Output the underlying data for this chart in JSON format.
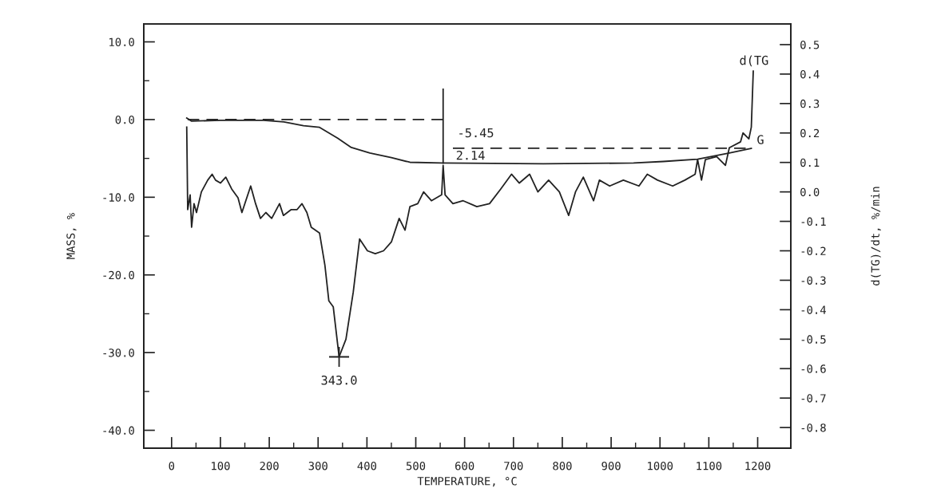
{
  "chart_data": {
    "type": "line",
    "xlabel": "TEMPERATURE, °C",
    "ylabel": "MASS, %",
    "y2label": "d(TG)/dt, %/min",
    "xlim": [
      -57,
      1268
    ],
    "ylim": [
      -42.3,
      12.3
    ],
    "y2lim": [
      -0.87,
      0.57
    ],
    "xticks": [
      0,
      {
        "value": 50,
        "label": null
      },
      100,
      {
        "value": 150,
        "label": null
      },
      200,
      {
        "value": 250,
        "label": null
      },
      300,
      {
        "value": 350,
        "label": null
      },
      400,
      {
        "value": 450,
        "label": null
      },
      500,
      {
        "value": 550,
        "label": null
      },
      600,
      {
        "value": 650,
        "label": null
      },
      700,
      {
        "value": 750,
        "label": null
      },
      800,
      {
        "value": 850,
        "label": null
      },
      900,
      {
        "value": 950,
        "label": null
      },
      1000,
      {
        "value": 1050,
        "label": null
      },
      1100,
      {
        "value": 1150,
        "label": null
      },
      1200
    ],
    "yticks": [
      {
        "value": 10,
        "label": "10.0"
      },
      {
        "value": 5,
        "label": null
      },
      {
        "value": 0,
        "label": "0.0"
      },
      {
        "value": -5,
        "label": null
      },
      {
        "value": -10,
        "label": "-10.0"
      },
      {
        "value": -15,
        "label": null
      },
      {
        "value": -20,
        "label": "-20.0"
      },
      {
        "value": -25,
        "label": null
      },
      {
        "value": -30,
        "label": "-30.0"
      },
      {
        "value": -35,
        "label": null
      },
      {
        "value": -40,
        "label": "-40.0"
      }
    ],
    "y2ticks": [
      {
        "value": 0.5,
        "label": "0.5"
      },
      {
        "value": 0.4,
        "label": "0.4"
      },
      {
        "value": 0.3,
        "label": "0.3"
      },
      {
        "value": 0.2,
        "label": "0.2"
      },
      {
        "value": 0.1,
        "label": "0.1"
      },
      {
        "value": 0,
        "label": "0.0"
      },
      {
        "value": -0.1,
        "label": "-0.1"
      },
      {
        "value": -0.2,
        "label": "-0.2"
      },
      {
        "value": -0.3,
        "label": "-0.3"
      },
      {
        "value": -0.4,
        "label": "-0.4"
      },
      {
        "value": -0.5,
        "label": "-0.5"
      },
      {
        "value": -0.6,
        "label": "-0.6"
      },
      {
        "value": -0.7,
        "label": "-0.7"
      },
      {
        "value": -0.8,
        "label": "-0.8"
      }
    ],
    "series": [
      {
        "axis": "y",
        "color": "#222222",
        "line_style": "solid",
        "x": [
          31,
          41,
          100,
          139,
          188,
          230,
          270,
          303,
          340,
          368,
          406,
          450,
          488,
          553,
          761,
          946,
          1007,
          1077,
          1142,
          1187
        ],
        "values": [
          0.2,
          -0.2,
          -0.1,
          -0.1,
          -0.1,
          -0.3,
          -0.8,
          -1.0,
          -2.4,
          -3.6,
          -4.3,
          -4.9,
          -5.5,
          -5.6,
          -5.7,
          -5.6,
          -5.4,
          -5.1,
          -4.3,
          -3.7
        ]
      },
      {
        "axis": "y2",
        "color": "#222222",
        "line_style": "solid",
        "x": [
          31,
          33,
          38,
          41,
          46,
          51,
          61,
          74,
          83,
          90,
          100,
          111,
          123,
          136,
          144,
          162,
          172,
          182,
          193,
          205,
          221,
          229,
          245,
          257,
          267,
          277,
          286,
          303,
          314,
          322,
          331,
          343,
          357,
          372,
          385,
          401,
          417,
          434,
          450,
          466,
          478,
          488,
          504,
          516,
          532,
          553,
          556,
          560,
          576,
          597,
          625,
          651,
          674,
          696,
          712,
          733,
          750,
          772,
          794,
          813,
          827,
          843,
          864,
          876,
          897,
          925,
          957,
          974,
          995,
          1026,
          1051,
          1072,
          1077,
          1085,
          1093,
          1116,
          1134,
          1142,
          1165,
          1170,
          1182,
          1187,
          1191
        ],
        "values": [
          0.22,
          -0.06,
          -0.01,
          -0.12,
          -0.04,
          -0.07,
          0.0,
          0.04,
          0.06,
          0.04,
          0.03,
          0.05,
          0.01,
          -0.02,
          -0.07,
          0.02,
          -0.04,
          -0.09,
          -0.07,
          -0.09,
          -0.04,
          -0.08,
          -0.06,
          -0.06,
          -0.04,
          -0.07,
          -0.12,
          -0.14,
          -0.25,
          -0.37,
          -0.39,
          -0.56,
          -0.5,
          -0.34,
          -0.16,
          -0.2,
          -0.21,
          -0.2,
          -0.17,
          -0.09,
          -0.13,
          -0.05,
          -0.04,
          0.0,
          -0.03,
          -0.01,
          0.09,
          -0.01,
          -0.04,
          -0.03,
          -0.05,
          -0.04,
          0.01,
          0.06,
          0.03,
          0.06,
          0.0,
          0.04,
          0.0,
          -0.08,
          0.0,
          0.05,
          -0.03,
          0.04,
          0.02,
          0.04,
          0.02,
          0.06,
          0.04,
          0.02,
          0.04,
          0.06,
          0.11,
          0.04,
          0.11,
          0.12,
          0.09,
          0.15,
          0.17,
          0.2,
          0.18,
          0.22,
          0.41
        ]
      },
      {
        "axis": "y",
        "color": "#222222",
        "line_style": "dashed",
        "x": [
          33,
          556
        ],
        "values": [
          0.0,
          0.0
        ]
      },
      {
        "axis": "y",
        "color": "#222222",
        "line_style": "dashed",
        "x": [
          576,
          1190
        ],
        "values": [
          -3.7,
          -3.7
        ]
      },
      {
        "axis": "y",
        "color": "#222222",
        "line_style": "solid",
        "x": [
          556,
          556
        ],
        "values": [
          3.9,
          -5.6
        ]
      }
    ],
    "annotations": [
      "-5.45",
      "2.14",
      {
        "text": "343.0",
        "x": 343,
        "y": -30.55
      },
      "d(TG",
      "G"
    ]
  }
}
